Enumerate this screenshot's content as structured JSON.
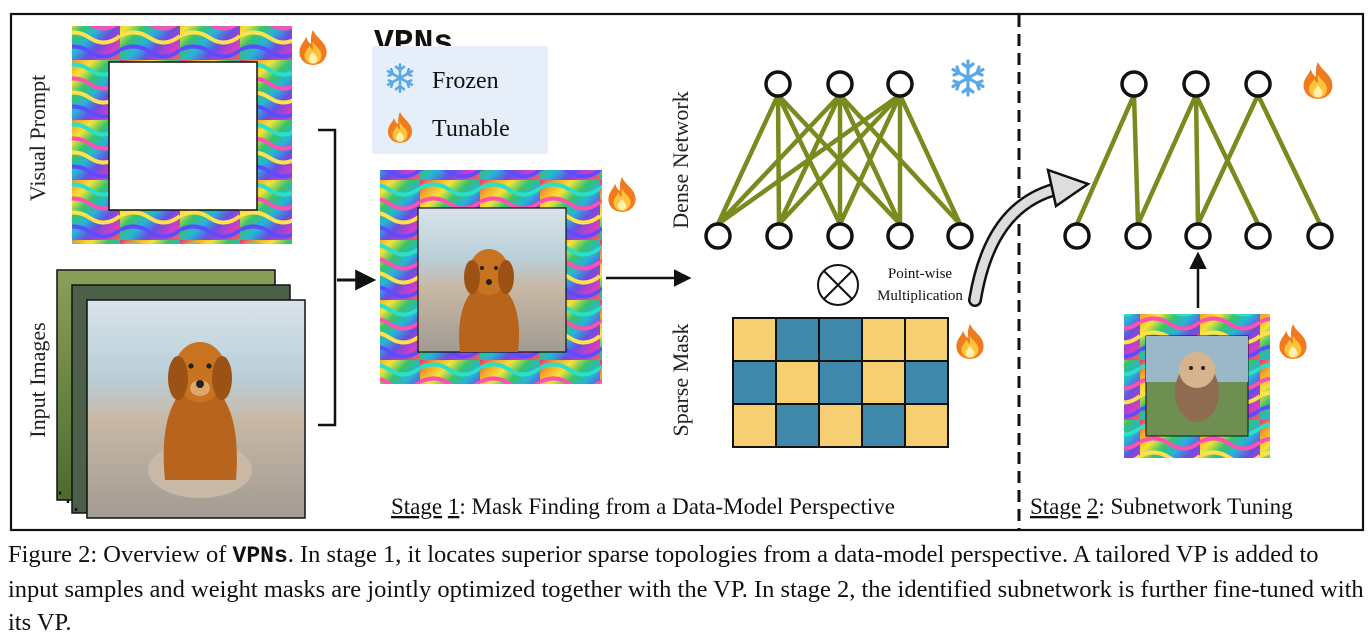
{
  "figure": {
    "legend": {
      "title": "VPNs",
      "frozen_label": "Frozen",
      "tunable_label": "Tunable"
    },
    "labels": {
      "visual_prompt": "Visual Prompt",
      "input_images": "Input Images",
      "dense_network": "Dense Network",
      "sparse_mask": "Sparse Mask",
      "pointwise_line1": "Point-wise",
      "pointwise_line2": "Multiplication"
    },
    "stage1": {
      "prefix": "Stage",
      "number": "1",
      "text": ": Mask Finding from a Data-Model Perspective"
    },
    "stage2": {
      "prefix": "Stage",
      "number": "2",
      "text": ": Subnetwork Tuning"
    },
    "sparse_mask_grid": [
      [
        "yellow",
        "blue",
        "blue",
        "yellow",
        "yellow"
      ],
      [
        "blue",
        "yellow",
        "blue",
        "yellow",
        "blue"
      ],
      [
        "yellow",
        "blue",
        "yellow",
        "blue",
        "yellow"
      ]
    ],
    "colors": {
      "mask_yellow": "#f6cf72",
      "mask_blue": "#3f88aa",
      "edge_olive": "#7b8a1e",
      "frame_border": "#111111",
      "legend_bg": "#e6eef9"
    },
    "icons": [
      "fire-icon",
      "snowflake-icon",
      "otimes-icon",
      "arrow-icon"
    ]
  },
  "caption": {
    "prefix": "Figure 2: Overview of ",
    "name": "VPNs",
    "body": ". In stage 1, it locates superior sparse topologies from a data-model perspective. A tailored VP is added to input samples and weight masks are jointly optimized together with the VP. In stage 2, the identified subnetwork is further fine-tuned with its VP."
  }
}
